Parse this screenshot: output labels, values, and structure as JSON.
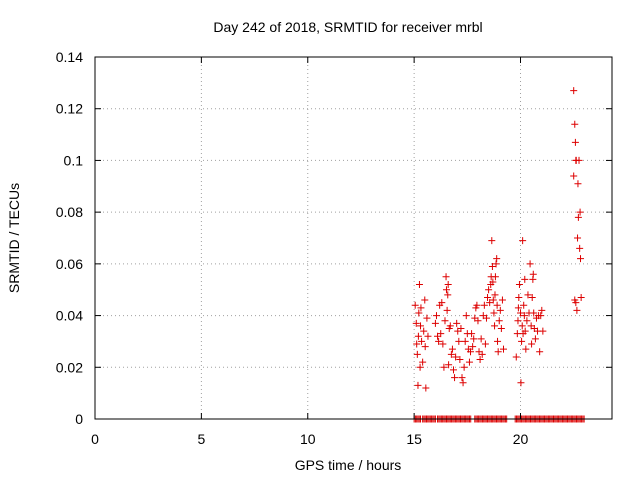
{
  "chart_data": {
    "type": "scatter",
    "title": "Day 242 of 2018, SRMTID for receiver mrbl",
    "xlabel": "GPS time / hours",
    "ylabel": "SRMTID / TECUs",
    "xlim": [
      0,
      24.3
    ],
    "ylim": [
      0,
      0.14
    ],
    "x_ticks": [
      "0",
      "5",
      "10",
      "15",
      "20"
    ],
    "x_tick_values": [
      0,
      5,
      10,
      15,
      20
    ],
    "y_ticks": [
      "0",
      "0.02",
      "0.04",
      "0.06",
      "0.08",
      "0.1",
      "0.12",
      "0.14"
    ],
    "y_tick_values": [
      0,
      0.02,
      0.04,
      0.06,
      0.08,
      0.1,
      0.12,
      0.14
    ],
    "grid": true,
    "marker": "plus",
    "marker_color": "#dd0000",
    "series": [
      {
        "points": [
          [
            15.05,
            0.044
          ],
          [
            15.1,
            0.037
          ],
          [
            15.12,
            0.029
          ],
          [
            15.15,
            0.025
          ],
          [
            15.18,
            0.013
          ],
          [
            15.2,
            0.032
          ],
          [
            15.22,
            0.041
          ],
          [
            15.25,
            0.052
          ],
          [
            15.28,
            0.02
          ],
          [
            15.3,
            0.036
          ],
          [
            15.32,
            0.043
          ],
          [
            15.35,
            0.03
          ],
          [
            15.4,
            0.022
          ],
          [
            15.45,
            0.034
          ],
          [
            15.5,
            0.046
          ],
          [
            15.52,
            0.028
          ],
          [
            15.55,
            0.012
          ],
          [
            15.6,
            0.039
          ],
          [
            15.65,
            0.032
          ],
          [
            16.0,
            0.037
          ],
          [
            16.05,
            0.04
          ],
          [
            16.1,
            0.032
          ],
          [
            16.15,
            0.03
          ],
          [
            16.2,
            0.044
          ],
          [
            16.25,
            0.033
          ],
          [
            16.3,
            0.045
          ],
          [
            16.35,
            0.029
          ],
          [
            16.4,
            0.02
          ],
          [
            16.45,
            0.038
          ],
          [
            16.5,
            0.055
          ],
          [
            16.52,
            0.05
          ],
          [
            16.55,
            0.042
          ],
          [
            16.58,
            0.048
          ],
          [
            16.6,
            0.052
          ],
          [
            16.62,
            0.021
          ],
          [
            16.65,
            0.035
          ],
          [
            16.7,
            0.036
          ],
          [
            16.75,
            0.025
          ],
          [
            16.8,
            0.027
          ],
          [
            16.85,
            0.019
          ],
          [
            16.9,
            0.016
          ],
          [
            16.95,
            0.024
          ],
          [
            17.0,
            0.037
          ],
          [
            17.05,
            0.034
          ],
          [
            17.1,
            0.03
          ],
          [
            17.15,
            0.023
          ],
          [
            17.2,
            0.035
          ],
          [
            17.25,
            0.016
          ],
          [
            17.3,
            0.014
          ],
          [
            17.35,
            0.02
          ],
          [
            17.4,
            0.03
          ],
          [
            17.45,
            0.04
          ],
          [
            17.5,
            0.033
          ],
          [
            17.55,
            0.027
          ],
          [
            17.6,
            0.022
          ],
          [
            17.65,
            0.026
          ],
          [
            17.7,
            0.033
          ],
          [
            17.75,
            0.028
          ],
          [
            17.8,
            0.031
          ],
          [
            17.85,
            0.039
          ],
          [
            17.9,
            0.043
          ],
          [
            17.95,
            0.044
          ],
          [
            18.0,
            0.038
          ],
          [
            18.05,
            0.026
          ],
          [
            18.1,
            0.023
          ],
          [
            18.15,
            0.031
          ],
          [
            18.2,
            0.025
          ],
          [
            18.25,
            0.04
          ],
          [
            18.3,
            0.044
          ],
          [
            18.35,
            0.029
          ],
          [
            18.4,
            0.039
          ],
          [
            18.45,
            0.047
          ],
          [
            18.5,
            0.05
          ],
          [
            18.55,
            0.045
          ],
          [
            18.6,
            0.052
          ],
          [
            18.62,
            0.055
          ],
          [
            18.65,
            0.069
          ],
          [
            18.68,
            0.059
          ],
          [
            18.7,
            0.053
          ],
          [
            18.72,
            0.046
          ],
          [
            18.75,
            0.041
          ],
          [
            18.78,
            0.036
          ],
          [
            18.8,
            0.048
          ],
          [
            18.82,
            0.055
          ],
          [
            18.85,
            0.06
          ],
          [
            18.88,
            0.062
          ],
          [
            18.9,
            0.044
          ],
          [
            18.92,
            0.03
          ],
          [
            18.95,
            0.026
          ],
          [
            19.0,
            0.038
          ],
          [
            19.05,
            0.042
          ],
          [
            19.1,
            0.035
          ],
          [
            19.15,
            0.046
          ],
          [
            19.2,
            0.027
          ],
          [
            19.8,
            0.024
          ],
          [
            19.85,
            0.033
          ],
          [
            19.88,
            0.038
          ],
          [
            19.9,
            0.043
          ],
          [
            19.92,
            0.047
          ],
          [
            19.95,
            0.052
          ],
          [
            20.0,
            0.041
          ],
          [
            20.02,
            0.014
          ],
          [
            20.05,
            0.03
          ],
          [
            20.08,
            0.036
          ],
          [
            20.1,
            0.069
          ],
          [
            20.12,
            0.033
          ],
          [
            20.15,
            0.044
          ],
          [
            20.18,
            0.04
          ],
          [
            20.2,
            0.054
          ],
          [
            20.22,
            0.034
          ],
          [
            20.25,
            0.027
          ],
          [
            20.3,
            0.038
          ],
          [
            20.35,
            0.048
          ],
          [
            20.4,
            0.041
          ],
          [
            20.45,
            0.06
          ],
          [
            20.5,
            0.036
          ],
          [
            20.52,
            0.029
          ],
          [
            20.55,
            0.047
          ],
          [
            20.58,
            0.054
          ],
          [
            20.6,
            0.056
          ],
          [
            20.62,
            0.041
          ],
          [
            20.65,
            0.035
          ],
          [
            20.7,
            0.031
          ],
          [
            20.75,
            0.039
          ],
          [
            20.8,
            0.034
          ],
          [
            20.85,
            0.04
          ],
          [
            20.9,
            0.026
          ],
          [
            20.95,
            0.04
          ],
          [
            21.0,
            0.042
          ],
          [
            21.05,
            0.034
          ],
          [
            22.5,
            0.127
          ],
          [
            22.55,
            0.114
          ],
          [
            22.58,
            0.107
          ],
          [
            22.6,
            0.1
          ],
          [
            22.62,
            0.1
          ],
          [
            22.5,
            0.094
          ],
          [
            22.7,
            0.091
          ],
          [
            22.75,
            0.1
          ],
          [
            22.72,
            0.078
          ],
          [
            22.8,
            0.08
          ],
          [
            22.68,
            0.07
          ],
          [
            22.78,
            0.066
          ],
          [
            22.82,
            0.062
          ],
          [
            22.55,
            0.046
          ],
          [
            22.6,
            0.045
          ],
          [
            22.65,
            0.042
          ],
          [
            22.85,
            0.047
          ]
        ]
      }
    ],
    "zero_band": {
      "y": 0,
      "x_ranges": [
        [
          15.0,
          15.35
        ],
        [
          15.4,
          16.0
        ],
        [
          16.1,
          17.7
        ],
        [
          17.85,
          19.35
        ],
        [
          19.75,
          21.5
        ],
        [
          21.55,
          23.0
        ]
      ],
      "spacing_hours": 0.06
    }
  }
}
